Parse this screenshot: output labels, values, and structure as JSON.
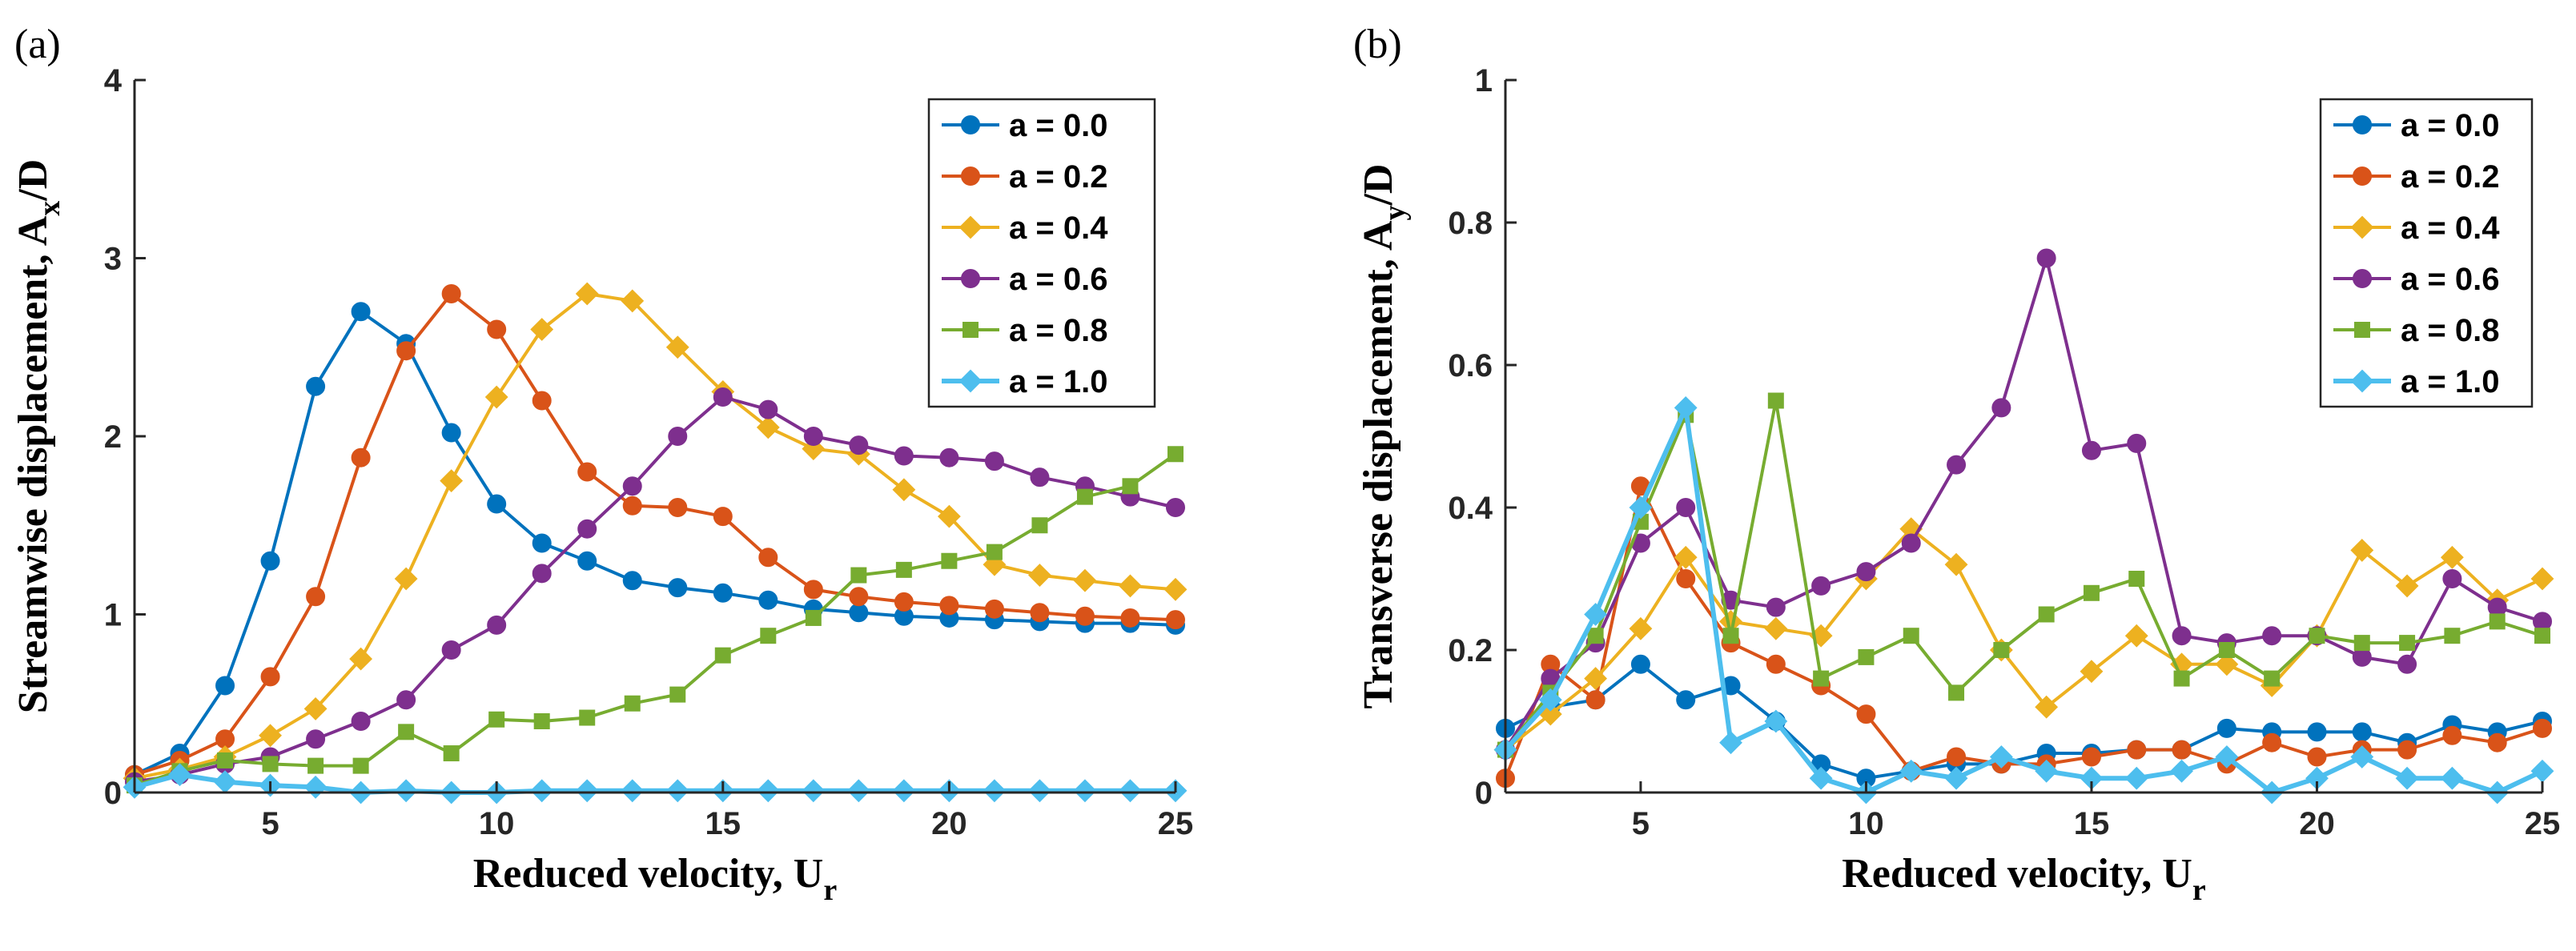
{
  "figure": {
    "panel_labels": [
      "(a)",
      "(b)"
    ]
  },
  "chart_data": [
    {
      "type": "line",
      "panel": "(a)",
      "xlabel": "Reduced velocity, U",
      "xlabel_sub": "r",
      "ylabel": "Streamwise displacement, A",
      "ylabel_sub": "x",
      "ylabel_tail": "/D",
      "xlim": [
        2,
        25
      ],
      "ylim": [
        0,
        4
      ],
      "xticks": [
        5,
        10,
        15,
        20,
        25
      ],
      "yticks": [
        0,
        1,
        2,
        3,
        4
      ],
      "grid": false,
      "legend_position": "top-right",
      "x": [
        2,
        3,
        4,
        5,
        6,
        7,
        8,
        9,
        10,
        11,
        12,
        13,
        14,
        15,
        16,
        17,
        18,
        19,
        20,
        21,
        22,
        23,
        24,
        25
      ],
      "series": [
        {
          "name": "a = 0.0",
          "color": "#0072BD",
          "marker": "circle",
          "line_width": 4,
          "values": [
            0.1,
            0.22,
            0.6,
            1.3,
            2.28,
            2.7,
            2.52,
            2.02,
            1.62,
            1.4,
            1.3,
            1.19,
            1.15,
            1.12,
            1.08,
            1.03,
            1.01,
            0.99,
            0.98,
            0.97,
            0.96,
            0.95,
            0.95,
            0.94
          ]
        },
        {
          "name": "a = 0.2",
          "color": "#D95319",
          "marker": "circle",
          "line_width": 4,
          "values": [
            0.1,
            0.18,
            0.3,
            0.65,
            1.1,
            1.88,
            2.48,
            2.8,
            2.6,
            2.2,
            1.8,
            1.61,
            1.6,
            1.55,
            1.32,
            1.14,
            1.1,
            1.07,
            1.05,
            1.03,
            1.01,
            0.99,
            0.98,
            0.97
          ]
        },
        {
          "name": "a = 0.4",
          "color": "#EDB120",
          "marker": "diamond",
          "line_width": 4,
          "values": [
            0.08,
            0.13,
            0.2,
            0.32,
            0.47,
            0.75,
            1.2,
            1.75,
            2.22,
            2.6,
            2.8,
            2.76,
            2.5,
            2.25,
            2.05,
            1.93,
            1.9,
            1.7,
            1.55,
            1.28,
            1.22,
            1.19,
            1.16,
            1.14
          ]
        },
        {
          "name": "a = 0.6",
          "color": "#7E2F8E",
          "marker": "circle",
          "line_width": 4,
          "values": [
            0.06,
            0.1,
            0.16,
            0.2,
            0.3,
            0.4,
            0.52,
            0.8,
            0.94,
            1.23,
            1.48,
            1.72,
            2.0,
            2.22,
            2.15,
            2.0,
            1.95,
            1.89,
            1.88,
            1.86,
            1.77,
            1.72,
            1.66,
            1.6
          ]
        },
        {
          "name": "a = 0.8",
          "color": "#77AC30",
          "marker": "square",
          "line_width": 4,
          "values": [
            0.04,
            0.12,
            0.18,
            0.16,
            0.15,
            0.15,
            0.34,
            0.22,
            0.41,
            0.4,
            0.42,
            0.5,
            0.55,
            0.77,
            0.88,
            0.98,
            1.22,
            1.25,
            1.3,
            1.35,
            1.5,
            1.66,
            1.72,
            1.9
          ]
        },
        {
          "name": "a = 1.0",
          "color": "#4DBEEE",
          "marker": "diamond",
          "line_width": 6,
          "values": [
            0.03,
            0.1,
            0.06,
            0.04,
            0.03,
            0.0,
            0.01,
            0.0,
            0.0,
            0.01,
            0.01,
            0.01,
            0.01,
            0.01,
            0.01,
            0.01,
            0.01,
            0.01,
            0.01,
            0.01,
            0.01,
            0.01,
            0.01,
            0.01
          ]
        }
      ]
    },
    {
      "type": "line",
      "panel": "(b)",
      "xlabel": "Reduced velocity, U",
      "xlabel_sub": "r",
      "ylabel": "Transverse displacement, A",
      "ylabel_sub": "y",
      "ylabel_tail": "/D",
      "xlim": [
        2,
        25
      ],
      "ylim": [
        0,
        1
      ],
      "xticks": [
        5,
        10,
        15,
        20,
        25
      ],
      "yticks": [
        0,
        0.2,
        0.4,
        0.6,
        0.8,
        1
      ],
      "grid": false,
      "legend_position": "top-right",
      "x": [
        2,
        3,
        4,
        5,
        6,
        7,
        8,
        9,
        10,
        11,
        12,
        13,
        14,
        15,
        16,
        17,
        18,
        19,
        20,
        21,
        22,
        23,
        24,
        25
      ],
      "series": [
        {
          "name": "a = 0.0",
          "color": "#0072BD",
          "marker": "circle",
          "line_width": 4,
          "values": [
            0.09,
            0.12,
            0.13,
            0.18,
            0.13,
            0.15,
            0.1,
            0.04,
            0.02,
            0.03,
            0.04,
            0.04,
            0.055,
            0.055,
            0.06,
            0.06,
            0.09,
            0.085,
            0.085,
            0.085,
            0.07,
            0.095,
            0.085,
            0.1
          ]
        },
        {
          "name": "a = 0.2",
          "color": "#D95319",
          "marker": "circle",
          "line_width": 4,
          "values": [
            0.02,
            0.18,
            0.13,
            0.43,
            0.3,
            0.21,
            0.18,
            0.15,
            0.11,
            0.03,
            0.05,
            0.04,
            0.04,
            0.05,
            0.06,
            0.06,
            0.04,
            0.07,
            0.05,
            0.06,
            0.06,
            0.08,
            0.07,
            0.09
          ]
        },
        {
          "name": "a = 0.4",
          "color": "#EDB120",
          "marker": "diamond",
          "line_width": 4,
          "values": [
            0.06,
            0.11,
            0.16,
            0.23,
            0.33,
            0.24,
            0.23,
            0.22,
            0.3,
            0.37,
            0.32,
            0.2,
            0.12,
            0.17,
            0.22,
            0.18,
            0.18,
            0.15,
            0.22,
            0.34,
            0.29,
            0.33,
            0.27,
            0.3
          ]
        },
        {
          "name": "a = 0.6",
          "color": "#7E2F8E",
          "marker": "circle",
          "line_width": 4,
          "values": [
            0.06,
            0.16,
            0.21,
            0.35,
            0.4,
            0.27,
            0.26,
            0.29,
            0.31,
            0.35,
            0.46,
            0.54,
            0.75,
            0.48,
            0.49,
            0.22,
            0.21,
            0.22,
            0.22,
            0.19,
            0.18,
            0.3,
            0.26,
            0.24
          ]
        },
        {
          "name": "a = 0.8",
          "color": "#77AC30",
          "marker": "square",
          "line_width": 4,
          "values": [
            0.06,
            0.14,
            0.22,
            0.38,
            0.53,
            0.22,
            0.55,
            0.16,
            0.19,
            0.22,
            0.14,
            0.2,
            0.25,
            0.28,
            0.3,
            0.16,
            0.2,
            0.16,
            0.22,
            0.21,
            0.21,
            0.22,
            0.24,
            0.22
          ]
        },
        {
          "name": "a = 1.0",
          "color": "#4DBEEE",
          "marker": "diamond",
          "line_width": 6,
          "values": [
            0.06,
            0.13,
            0.25,
            0.4,
            0.54,
            0.07,
            0.1,
            0.02,
            0.0,
            0.03,
            0.02,
            0.05,
            0.03,
            0.02,
            0.02,
            0.03,
            0.05,
            0.0,
            0.02,
            0.05,
            0.02,
            0.02,
            0.0,
            0.03
          ]
        }
      ]
    }
  ]
}
